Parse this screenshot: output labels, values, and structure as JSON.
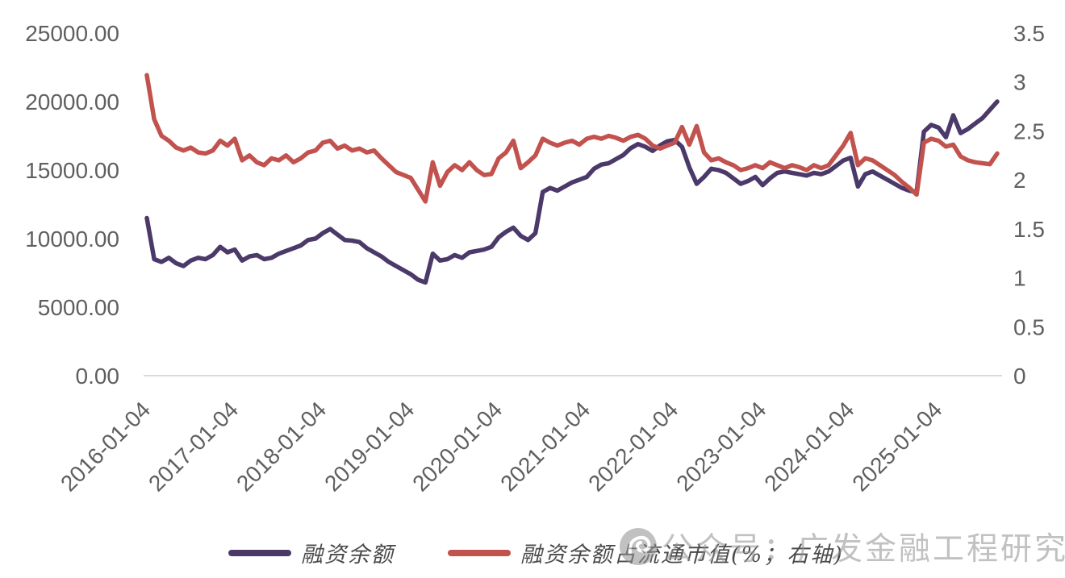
{
  "chart_data": {
    "type": "line",
    "title": "",
    "x_start": "2016-01",
    "x_frequency": "monthly",
    "x_tick_labels": [
      "2016-01-04",
      "2017-01-04",
      "2018-01-04",
      "2019-01-04",
      "2020-01-04",
      "2021-01-04",
      "2022-01-04",
      "2023-01-04",
      "2024-01-04",
      "2025-01-04"
    ],
    "left_axis": {
      "min": 0,
      "max": 25000,
      "tick_labels": [
        "25000.00",
        "20000.00",
        "15000.00",
        "10000.00",
        "5000.00",
        "0.00"
      ]
    },
    "right_axis": {
      "min": 0,
      "max": 3.5,
      "tick_labels": [
        "3.5",
        "3",
        "2.5",
        "2",
        "1.5",
        "1",
        "0.5",
        "0"
      ]
    },
    "grid": "off",
    "legend_position": "bottom",
    "series": [
      {
        "name": "融资余额",
        "axis": "left",
        "color": "#4b3a69",
        "values": [
          11500,
          8500,
          8300,
          8600,
          8200,
          8000,
          8400,
          8600,
          8500,
          8800,
          9400,
          9000,
          9200,
          8400,
          8700,
          8800,
          8500,
          8600,
          8900,
          9100,
          9300,
          9500,
          9900,
          10000,
          10400,
          10700,
          10300,
          9900,
          9850,
          9750,
          9300,
          9000,
          8700,
          8300,
          8000,
          7700,
          7400,
          7000,
          6800,
          8900,
          8400,
          8500,
          8800,
          8600,
          9000,
          9100,
          9200,
          9400,
          10100,
          10500,
          10800,
          10200,
          9900,
          10400,
          13400,
          13700,
          13500,
          13800,
          14100,
          14300,
          14500,
          15100,
          15400,
          15500,
          15800,
          16100,
          16600,
          16900,
          16700,
          16400,
          16800,
          17100,
          17200,
          16700,
          15200,
          14000,
          14500,
          15100,
          15000,
          14800,
          14400,
          14000,
          14200,
          14500,
          13900,
          14400,
          14800,
          14900,
          14800,
          14700,
          14600,
          14800,
          14700,
          14900,
          15300,
          15700,
          15900,
          13800,
          14700,
          14900,
          14600,
          14300,
          14000,
          13700,
          13500,
          13400,
          17800,
          18300,
          18100,
          17400,
          19000,
          17700,
          18000,
          18400,
          18800,
          19400,
          20000
        ]
      },
      {
        "name": "融资余额占流通市值(%；右轴)",
        "axis": "right",
        "color": "#c2524e",
        "values": [
          3.07,
          2.62,
          2.45,
          2.4,
          2.33,
          2.3,
          2.33,
          2.28,
          2.27,
          2.3,
          2.4,
          2.35,
          2.42,
          2.2,
          2.25,
          2.18,
          2.15,
          2.22,
          2.2,
          2.25,
          2.18,
          2.22,
          2.28,
          2.3,
          2.38,
          2.4,
          2.32,
          2.35,
          2.3,
          2.32,
          2.28,
          2.3,
          2.22,
          2.15,
          2.08,
          2.05,
          2.02,
          1.9,
          1.78,
          2.18,
          1.94,
          2.08,
          2.15,
          2.1,
          2.18,
          2.1,
          2.05,
          2.06,
          2.22,
          2.28,
          2.4,
          2.12,
          2.18,
          2.25,
          2.42,
          2.38,
          2.35,
          2.38,
          2.4,
          2.36,
          2.42,
          2.44,
          2.42,
          2.45,
          2.43,
          2.4,
          2.44,
          2.46,
          2.42,
          2.35,
          2.32,
          2.35,
          2.38,
          2.54,
          2.36,
          2.55,
          2.28,
          2.2,
          2.22,
          2.18,
          2.15,
          2.1,
          2.12,
          2.15,
          2.12,
          2.18,
          2.15,
          2.12,
          2.15,
          2.13,
          2.1,
          2.15,
          2.12,
          2.15,
          2.25,
          2.35,
          2.48,
          2.15,
          2.22,
          2.2,
          2.15,
          2.1,
          2.05,
          1.98,
          1.92,
          1.85,
          2.38,
          2.42,
          2.4,
          2.34,
          2.36,
          2.24,
          2.2,
          2.18,
          2.17,
          2.16,
          2.27
        ]
      }
    ],
    "baseline_color": "#d9d9d9",
    "axis_text_color": "#5f5f5f"
  },
  "legend": {
    "items": [
      {
        "label": "融资余额",
        "color": "#4b3a69"
      },
      {
        "label": "融资余额占流通市值(%；右轴)",
        "color": "#c2524e"
      }
    ]
  },
  "watermark": {
    "text": "公众号：广发金融工程研究",
    "logo": "gf-securities-round-logo"
  }
}
